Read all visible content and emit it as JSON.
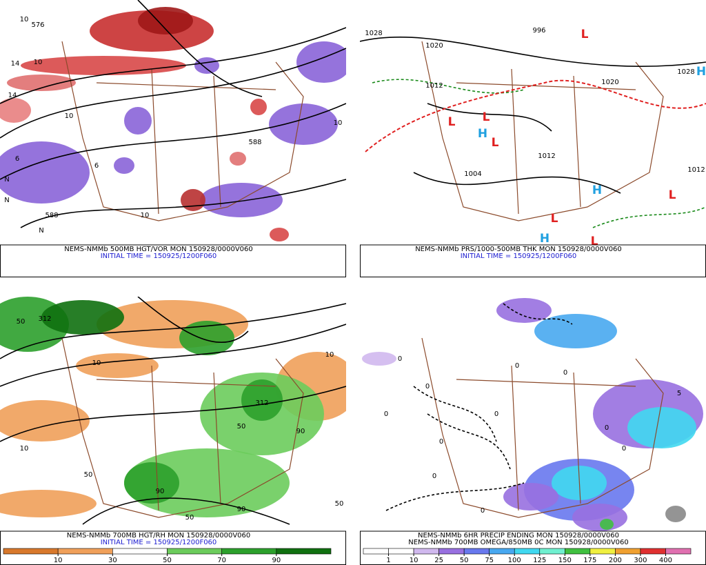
{
  "panels": [
    {
      "caption_lines": [
        "NEMS-NMMb 500MB HGT/VOR MON 150928/0000V060"
      ],
      "initial_time": "INITIAL TIME = 150925/1200F060",
      "labels": [
        "10",
        "576",
        "14",
        "10",
        "14",
        "10",
        "6",
        "N",
        "588",
        "10",
        "N",
        "588",
        "10",
        "N",
        "6"
      ]
    },
    {
      "caption_lines": [
        "NEMS-NMMb PRS/1000-500MB THK MON 150928/0000V060"
      ],
      "initial_time": "INITIAL TIME = 150925/1200F060",
      "labels": [
        "1028",
        "1020",
        "996",
        "1012",
        "1004",
        "1012",
        "1020",
        "1028",
        "1012",
        "L",
        "L",
        "L",
        "H",
        "L",
        "H",
        "L",
        "H",
        "L",
        "L",
        "H"
      ]
    },
    {
      "caption_lines": [
        "NEMS-NMMb 700MB HGT/RH MON 150928/0000V060"
      ],
      "initial_time": "INITIAL TIME = 150925/1200F060",
      "labels": [
        "312",
        "50",
        "10",
        "10",
        "50",
        "90",
        "50",
        "90",
        "50",
        "10",
        "50",
        "90",
        "312"
      ],
      "colorbar": {
        "ticks": [
          10,
          30,
          50,
          70,
          90
        ],
        "colors": [
          "#d8782c",
          "#f0a05a",
          "#ffffff",
          "#6ccc5c",
          "#2ca02c",
          "#107010"
        ]
      }
    },
    {
      "caption_lines": [
        "NEMS-NMMb 6HR PRECIP ENDING MON 150928/0000V060",
        "NEMS-NMMb 700MB OMEGA/850MB 0C MON 150928/0000V060"
      ],
      "labels": [
        "0",
        "0",
        "0",
        "0",
        "0",
        "5",
        "0",
        "0",
        "0",
        "0",
        "0",
        "0"
      ],
      "colorbar": {
        "ticks": [
          1,
          10,
          25,
          50,
          75,
          100,
          125,
          150,
          175,
          200,
          300,
          400
        ],
        "colors": [
          "#ffffff",
          "#ffffff",
          "#d0b8ee",
          "#9870e0",
          "#6878ee",
          "#48a8f0",
          "#40d8f0",
          "#70f0d0",
          "#40c040",
          "#f0f040",
          "#f0a030",
          "#e03030",
          "#e070b0"
        ]
      }
    }
  ]
}
